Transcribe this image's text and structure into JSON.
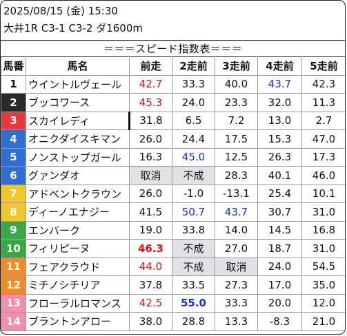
{
  "header": {
    "date_line": "2025/08/15 (金) 15:30",
    "race_line": "大井1R C3-1 C3-2 ダ1600m"
  },
  "banner": "＝＝＝スピード指数表＝＝＝",
  "columns": [
    "馬番",
    "馬名",
    "前走",
    "2走前",
    "3走前",
    "4走前",
    "5走前"
  ],
  "colors": {
    "red_value": "#e01010",
    "blue_value": "#1a2bd8",
    "gray_cell": "#e1e1e6"
  },
  "rows": [
    {
      "num": "1",
      "name": "ウイントルヴェール",
      "bg": "#ffffff",
      "fg": "#111111",
      "cells": [
        {
          "v": "42.7",
          "c": "red"
        },
        {
          "v": "33.3"
        },
        {
          "v": "40.0"
        },
        {
          "v": "43.7",
          "c": "blue"
        },
        {
          "v": "42.3"
        }
      ]
    },
    {
      "num": "2",
      "name": "ブッコワース",
      "bg": "#2a2a2a",
      "fg": "#ffffff",
      "cells": [
        {
          "v": "45.3",
          "c": "red"
        },
        {
          "v": "24.0"
        },
        {
          "v": "23.3"
        },
        {
          "v": "32.0"
        },
        {
          "v": "11.3"
        }
      ]
    },
    {
      "num": "3",
      "name": "スカイレディ",
      "bg": "#e8373f",
      "fg": "#ffffff",
      "nameRightRule": true,
      "cells": [
        {
          "v": "31.8"
        },
        {
          "v": "6.5"
        },
        {
          "v": "7.2"
        },
        {
          "v": "13.0"
        },
        {
          "v": "2.7"
        }
      ]
    },
    {
      "num": "4",
      "name": "オニクダイスキマン",
      "bg": "#2f6fd1",
      "fg": "#ffffff",
      "cells": [
        {
          "v": "26.0"
        },
        {
          "v": "24.4"
        },
        {
          "v": "17.5"
        },
        {
          "v": "15.3"
        },
        {
          "v": "47.0"
        }
      ]
    },
    {
      "num": "5",
      "name": "ノンストップガール",
      "bg": "#2f6fd1",
      "fg": "#ffffff",
      "cells": [
        {
          "v": "16.3"
        },
        {
          "v": "45.0",
          "c": "blue"
        },
        {
          "v": "12.5"
        },
        {
          "v": "26.3"
        },
        {
          "v": "17.3"
        }
      ]
    },
    {
      "num": "6",
      "name": "グァンダオ",
      "bg": "#2f6fd1",
      "fg": "#ffffff",
      "cells": [
        {
          "v": "取消",
          "g": true
        },
        {
          "v": "不成",
          "g": true
        },
        {
          "v": "28.3"
        },
        {
          "v": "40.1"
        },
        {
          "v": "46.0"
        }
      ]
    },
    {
      "num": "7",
      "name": "アドベントクラウン",
      "bg": "#efc72b",
      "fg": "#ffffff",
      "cells": [
        {
          "v": "26.0"
        },
        {
          "v": "-1.0"
        },
        {
          "v": "-13.1"
        },
        {
          "v": "25.4"
        },
        {
          "v": "10.1"
        }
      ]
    },
    {
      "num": "8",
      "name": "ディーノエナジー",
      "bg": "#efc72b",
      "fg": "#ffffff",
      "cells": [
        {
          "v": "41.5"
        },
        {
          "v": "50.7",
          "c": "blue"
        },
        {
          "v": "43.7",
          "c": "blue"
        },
        {
          "v": "30.7"
        },
        {
          "v": "31.0"
        }
      ]
    },
    {
      "num": "9",
      "name": "エンバーク",
      "bg": "#3aa845",
      "fg": "#ffffff",
      "cells": [
        {
          "v": "19.0"
        },
        {
          "v": "33.8"
        },
        {
          "v": "14.0"
        },
        {
          "v": "14.5"
        },
        {
          "v": "16.8"
        }
      ]
    },
    {
      "num": "10",
      "name": "フィリピーヌ",
      "bg": "#3aa845",
      "fg": "#ffffff",
      "cells": [
        {
          "v": "46.3",
          "c": "red",
          "b": true
        },
        {
          "v": "不成",
          "g": true
        },
        {
          "v": "27.0"
        },
        {
          "v": "18.7"
        },
        {
          "v": "31.0"
        }
      ]
    },
    {
      "num": "11",
      "name": "フェアクラウド",
      "bg": "#f28c24",
      "fg": "#ffffff",
      "cells": [
        {
          "v": "44.0",
          "c": "red"
        },
        {
          "v": "不成",
          "g": true
        },
        {
          "v": "取消",
          "g": true
        },
        {
          "v": "24.0"
        },
        {
          "v": "54.5"
        }
      ]
    },
    {
      "num": "12",
      "name": "ミチノシチリア",
      "bg": "#f28c24",
      "fg": "#ffffff",
      "cells": [
        {
          "v": "37.8"
        },
        {
          "v": "33.5"
        },
        {
          "v": "27.3"
        },
        {
          "v": "17.0"
        },
        {
          "v": "35.0"
        }
      ]
    },
    {
      "num": "13",
      "name": "フローラルロマンス",
      "bg": "#f08fb0",
      "fg": "#ffffff",
      "cells": [
        {
          "v": "42.5",
          "c": "red"
        },
        {
          "v": "55.0",
          "c": "blue",
          "b": true
        },
        {
          "v": "33.3"
        },
        {
          "v": "20.0"
        },
        {
          "v": "12.0"
        }
      ]
    },
    {
      "num": "14",
      "name": "ブラントンアロー",
      "bg": "#f08fb0",
      "fg": "#ffffff",
      "cells": [
        {
          "v": "38.0"
        },
        {
          "v": "28.8"
        },
        {
          "v": "13.3"
        },
        {
          "v": "-8.3"
        },
        {
          "v": "21.0"
        }
      ]
    }
  ]
}
